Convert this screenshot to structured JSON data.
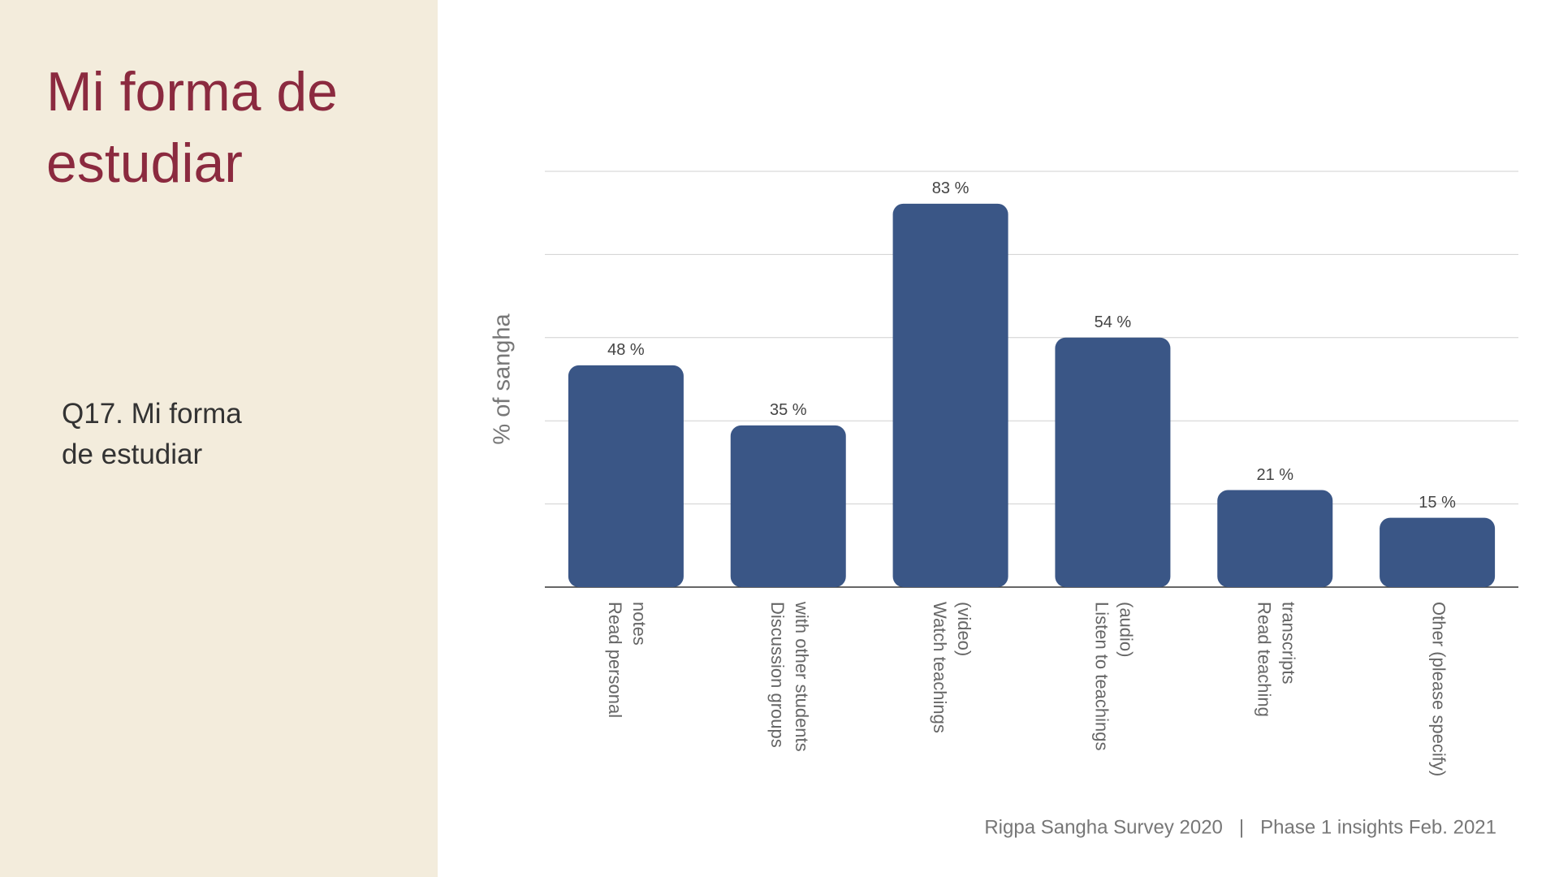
{
  "title": "Mi forma de estudiar",
  "subtitle": "Q17. Mi forma de estudiar",
  "footer": "Rigpa Sangha Survey 2020   |   Phase 1 insights Feb. 2021",
  "chart_data": {
    "type": "bar",
    "ylabel": "% of sangha",
    "categories": [
      [
        "Read personal",
        "notes"
      ],
      [
        "Discussion groups",
        "with other students"
      ],
      [
        "Watch teachings",
        "(video)"
      ],
      [
        "Listen to teachings",
        "(audio)"
      ],
      [
        "Read teaching",
        "transcripts"
      ],
      [
        "Other (please specify)"
      ]
    ],
    "values": [
      48,
      35,
      83,
      54,
      21,
      15
    ],
    "value_labels": [
      "48 %",
      "35 %",
      "83 %",
      "54 %",
      "21 %",
      "15 %"
    ],
    "color": "#3a5686",
    "ylim": [
      0,
      90
    ],
    "yticks": [
      0,
      18,
      36,
      54,
      72,
      90
    ],
    "grid": true
  }
}
